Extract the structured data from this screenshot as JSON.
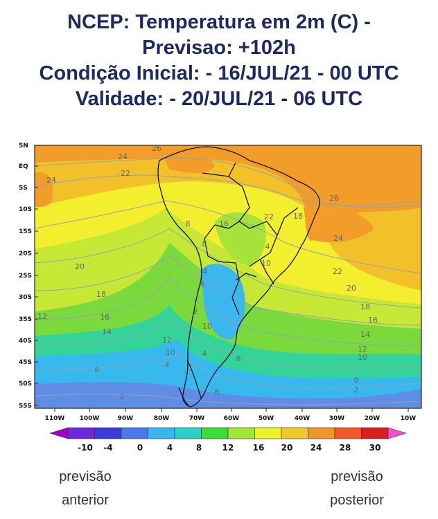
{
  "title": {
    "line1": "NCEP: Temperatura em 2m (C) -",
    "line2": "Previsao: +102h",
    "line3": "Condição Inicial: - 16/JUL/21 - 00 UTC",
    "line4": "Validade: - 20/JUL/21 - 06 UTC"
  },
  "map": {
    "lat_ticks": [
      "5N",
      "EQ",
      "5S",
      "10S",
      "15S",
      "20S",
      "25S",
      "30S",
      "35S",
      "40S",
      "45S",
      "50S",
      "55S"
    ],
    "lon_ticks": [
      "110W",
      "100W",
      "90W",
      "80W",
      "70W",
      "60W",
      "50W",
      "40W",
      "30W",
      "20W",
      "10W"
    ],
    "contour_labels": [
      "26",
      "24",
      "22",
      "24",
      "26",
      "18",
      "24",
      "22",
      "20",
      "18",
      "16",
      "14",
      "12",
      "10",
      "20",
      "18",
      "16",
      "14",
      "12",
      "12",
      "10",
      "8",
      "6",
      "4",
      "2",
      "0",
      "2",
      "8",
      "6",
      "4",
      "2",
      "10",
      "8",
      "6",
      "4",
      "22",
      "16",
      "10",
      "4"
    ]
  },
  "colorbar": {
    "colors": [
      "#a000c8",
      "#6e28dc",
      "#3c3cdc",
      "#4a78e6",
      "#3cb4f0",
      "#28d2c8",
      "#3cdc3c",
      "#a0e632",
      "#f0f028",
      "#f0c828",
      "#f09628",
      "#f05a28",
      "#dc1e1e",
      "#f050d2"
    ],
    "labels": [
      "-10",
      "-4",
      "0",
      "4",
      "8",
      "12",
      "16",
      "20",
      "24",
      "28",
      "30"
    ]
  },
  "nav": {
    "prev_line1": "previsão",
    "prev_line2": "anterior",
    "next_line1": "previsão",
    "next_line2": "posterior"
  }
}
